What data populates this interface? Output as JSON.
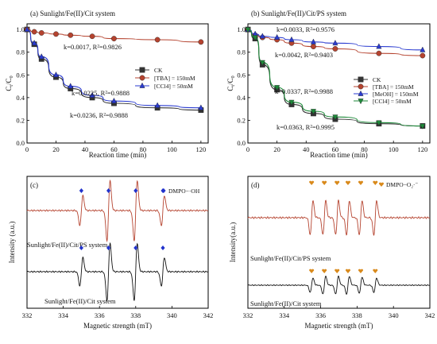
{
  "figure": {
    "panels": {
      "a": {
        "label": "(a) Sunlight/Fe(II)/Cit system",
        "xlabel": "Reaction time (min)",
        "ylabel": "Ct/C0",
        "ylabel_main": "C",
        "ylabel_sub1": "t",
        "ylabel_mid": "/C",
        "ylabel_sub2": "0",
        "annotations": [
          {
            "text": "k=0.0017, R²=0.9826",
            "color": "#b5432f"
          },
          {
            "text": "k=0.0225, R²=0.9888",
            "color": "#2a3bd0"
          },
          {
            "text": "k=0.0236, R²=0.9888",
            "color": "#111111"
          }
        ]
      },
      "b": {
        "label": "(b) Sunlight/Fe(II)/Cit/PS system",
        "xlabel": "Reaction time (min)",
        "ylabel": "Ct/C0",
        "ylabel_main": "C",
        "ylabel_sub1": "t",
        "ylabel_mid": "/C",
        "ylabel_sub2": "0",
        "annotations": [
          {
            "text": "k=0.0033, R²=0.9576",
            "color": "#2a3bd0"
          },
          {
            "text": "k=0.0042, R²=0.9403",
            "color": "#b5432f"
          },
          {
            "text": "k=0.0337, R²=0.9988",
            "color": "#1e8a3a"
          },
          {
            "text": "k=0.0363, R²=0.9995",
            "color": "#111111"
          }
        ]
      },
      "c": {
        "label": "(c)",
        "xlabel": "Magnetic strength (mT)",
        "ylabel": "Intensity (a.u.)",
        "legend": "DMPO−·OH",
        "legend_color": "#2233cc",
        "trace_labels": [
          {
            "text": "Sunlight/Fe(II)/Cit/PS system",
            "color": "#b5432f"
          },
          {
            "text": "Sunlight/Fe(II)/Cit system",
            "color": "#111111"
          }
        ]
      },
      "d": {
        "label": "(d)",
        "xlabel": "Magnetic strength (mT)",
        "ylabel": "Intensity(a.u.)",
        "legend": "DMPO−O₂·⁻",
        "legend_color": "#d98a1c",
        "trace_labels": [
          {
            "text": "Sunlight/Fe(II)/Cit/PS system",
            "color": "#b5432f"
          },
          {
            "text": "Sunlight/Fe(II)/Cit system",
            "color": "#111111"
          }
        ]
      }
    }
  },
  "chart_data": [
    {
      "type": "line",
      "title": "(a) Sunlight/Fe(II)/Cit system",
      "xlabel": "Reaction time (min)",
      "ylabel": "Ct/C0",
      "xlim": [
        0,
        125
      ],
      "ylim": [
        0.0,
        1.05
      ],
      "xticks": [
        0,
        20,
        40,
        60,
        80,
        100,
        120
      ],
      "yticks": [
        0.0,
        0.2,
        0.4,
        0.6,
        0.8,
        1.0
      ],
      "legend_position": "right-middle",
      "x": [
        0,
        5,
        10,
        20,
        30,
        45,
        60,
        90,
        120
      ],
      "series": [
        {
          "name": "CK",
          "color": "#333333",
          "marker": "square",
          "values": [
            1.0,
            0.87,
            0.74,
            0.58,
            0.48,
            0.4,
            0.35,
            0.31,
            0.29
          ]
        },
        {
          "name": "[TBA] = 150mM",
          "color": "#b5432f",
          "marker": "circle",
          "values": [
            1.0,
            0.98,
            0.97,
            0.96,
            0.95,
            0.94,
            0.92,
            0.91,
            0.89
          ]
        },
        {
          "name": "[CCl4] = 50mM",
          "color": "#2a3bd0",
          "marker": "triangle",
          "values": [
            1.0,
            0.88,
            0.76,
            0.6,
            0.5,
            0.42,
            0.37,
            0.33,
            0.31
          ]
        }
      ]
    },
    {
      "type": "line",
      "title": "(b) Sunlight/Fe(II)/Cit/PS system",
      "xlabel": "Reaction time (min)",
      "ylabel": "Ct/C0",
      "xlim": [
        0,
        125
      ],
      "ylim": [
        0.0,
        1.05
      ],
      "xticks": [
        0,
        20,
        40,
        60,
        80,
        100,
        120
      ],
      "yticks": [
        0.0,
        0.2,
        0.4,
        0.6,
        0.8,
        1.0
      ],
      "legend_position": "right-middle",
      "x": [
        0,
        5,
        10,
        20,
        30,
        45,
        60,
        90,
        120
      ],
      "series": [
        {
          "name": "CK",
          "color": "#333333",
          "marker": "square",
          "values": [
            1.0,
            0.92,
            0.69,
            0.47,
            0.34,
            0.26,
            0.21,
            0.17,
            0.15
          ]
        },
        {
          "name": "[TBA] = 150mM",
          "color": "#b5432f",
          "marker": "circle",
          "values": [
            1.0,
            0.95,
            0.93,
            0.91,
            0.88,
            0.85,
            0.83,
            0.79,
            0.77
          ]
        },
        {
          "name": "[MeOH] = 150mM",
          "color": "#2a3bd0",
          "marker": "triangle",
          "values": [
            1.0,
            0.96,
            0.94,
            0.93,
            0.91,
            0.89,
            0.88,
            0.85,
            0.82
          ]
        },
        {
          "name": "[CCl4] = 50mM",
          "color": "#1e8a3a",
          "marker": "triangle-down",
          "values": [
            1.0,
            0.93,
            0.71,
            0.49,
            0.36,
            0.28,
            0.23,
            0.18,
            0.15
          ]
        }
      ]
    },
    {
      "type": "line",
      "title": "(c)",
      "xlabel": "Magnetic strength (mT)",
      "ylabel": "Intensity (a.u.)",
      "xlim": [
        332,
        342
      ],
      "xticks": [
        332,
        334,
        336,
        338,
        340,
        342
      ],
      "legend": "DMPO−·OH",
      "peak_markers_mT": [
        335.0,
        336.5,
        338.0,
        339.5
      ],
      "series": [
        {
          "name": "Sunlight/Fe(II)/Cit/PS system",
          "color": "#b5432f",
          "peaks_mT": [
            335.0,
            336.5,
            338.0,
            339.5
          ],
          "relative_amplitude": [
            1.0,
            2.0,
            2.0,
            1.0
          ]
        },
        {
          "name": "Sunlight/Fe(II)/Cit system",
          "color": "#111111",
          "peaks_mT": [
            335.0,
            336.5,
            338.0,
            339.5
          ],
          "relative_amplitude": [
            1.0,
            2.0,
            2.0,
            1.0
          ]
        }
      ]
    },
    {
      "type": "line",
      "title": "(d)",
      "xlabel": "Magnetic strength (mT)",
      "ylabel": "Intensity(a.u.)",
      "xlim": [
        332,
        342
      ],
      "xticks": [
        332,
        334,
        336,
        338,
        340,
        342
      ],
      "legend": "DMPO−O₂·⁻",
      "peak_markers_mT": [
        335.5,
        336.2,
        336.9,
        337.5,
        338.2,
        339.0
      ],
      "series": [
        {
          "name": "Sunlight/Fe(II)/Cit/PS system",
          "color": "#b5432f",
          "peaks_mT": [
            335.5,
            336.2,
            336.9,
            337.5,
            338.2,
            339.0
          ],
          "relative_amplitude": [
            1.0,
            1.0,
            1.0,
            1.0,
            1.0,
            1.0
          ]
        },
        {
          "name": "Sunlight/Fe(II)/Cit system",
          "color": "#111111",
          "peaks_mT": [
            335.5,
            336.2,
            336.9,
            337.5,
            338.2,
            339.0
          ],
          "relative_amplitude": [
            0.8,
            1.0,
            1.0,
            1.0,
            0.9,
            0.8
          ]
        }
      ]
    }
  ]
}
